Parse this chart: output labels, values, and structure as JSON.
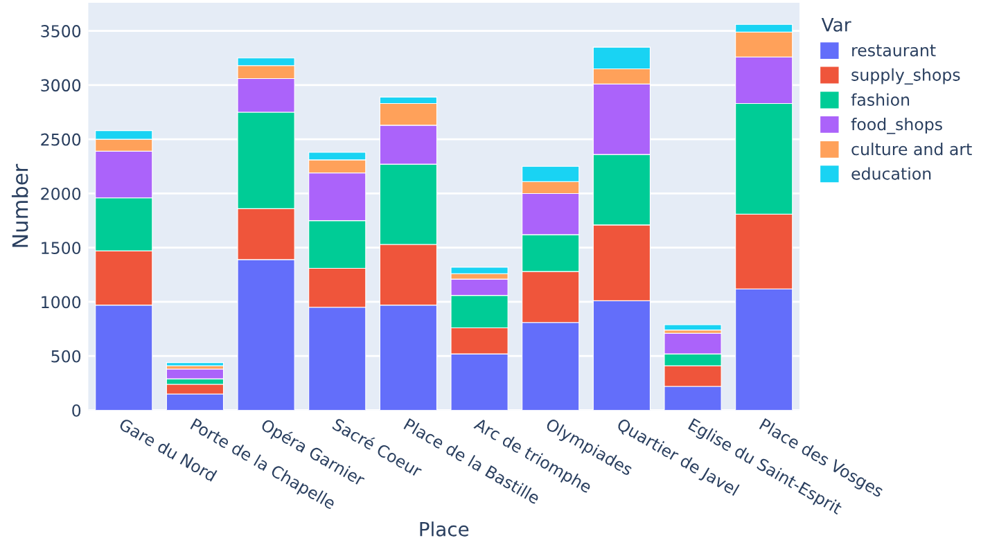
{
  "chart_data": {
    "type": "bar",
    "stacked": true,
    "xlabel": "Place",
    "ylabel": "Number",
    "legend_title": "Var",
    "legend": "right",
    "categories": [
      "Gare du Nord",
      "Porte de la Chapelle",
      "Opéra Garnier",
      "Sacré Coeur",
      "Place de la Bastille",
      "Arc de triomphe",
      "Olympiades",
      "Quartier de Javel",
      "Eglise du Saint-Esprit",
      "Place des Vosges"
    ],
    "series": [
      {
        "name": "restaurant",
        "color": "#636efa",
        "values": [
          970,
          150,
          1390,
          950,
          970,
          520,
          810,
          1010,
          220,
          1120
        ]
      },
      {
        "name": "supply_shops",
        "color": "#ef553b",
        "values": [
          500,
          90,
          470,
          360,
          560,
          240,
          470,
          700,
          190,
          690
        ]
      },
      {
        "name": "fashion",
        "color": "#00cc96",
        "values": [
          490,
          50,
          890,
          440,
          740,
          300,
          340,
          650,
          110,
          1020
        ]
      },
      {
        "name": "food_shops",
        "color": "#ab63fa",
        "values": [
          430,
          90,
          310,
          440,
          360,
          150,
          380,
          650,
          190,
          430
        ]
      },
      {
        "name": "culture and art",
        "color": "#ffa15a",
        "values": [
          110,
          30,
          120,
          120,
          200,
          50,
          110,
          140,
          30,
          230
        ]
      },
      {
        "name": "education",
        "color": "#19d3f3",
        "values": [
          80,
          30,
          70,
          70,
          60,
          60,
          140,
          200,
          50,
          70
        ]
      }
    ],
    "ylim": [
      0,
      3760
    ],
    "yticks": [
      0,
      500,
      1000,
      1500,
      2000,
      2500,
      3000,
      3500
    ],
    "grid": "y"
  }
}
